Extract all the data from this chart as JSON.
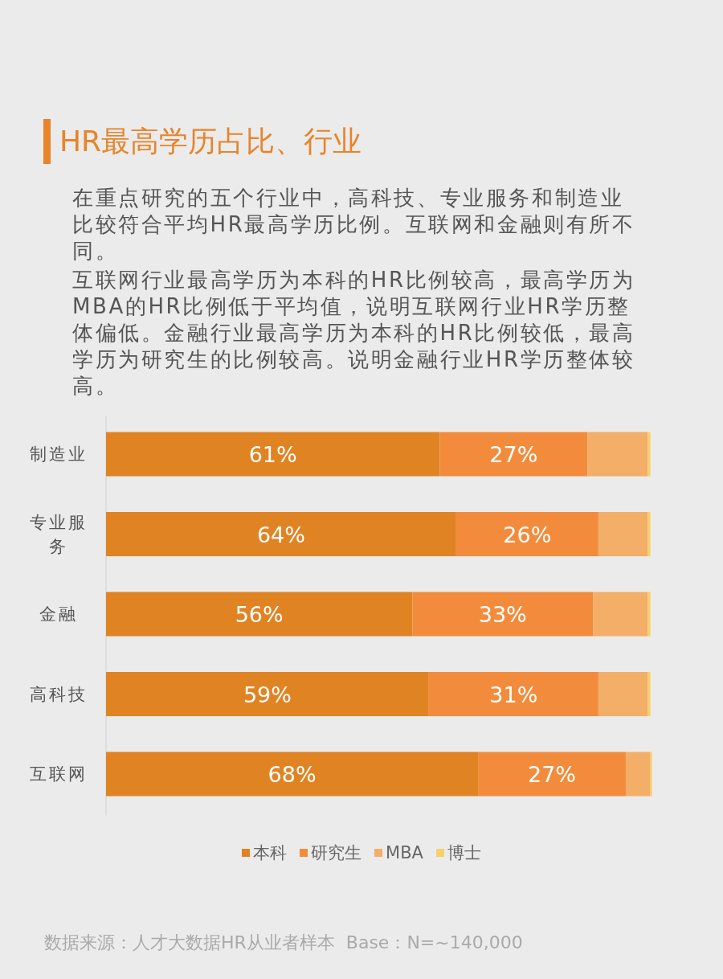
{
  "chart_data": {
    "type": "bar",
    "orientation": "horizontal",
    "stacked": true,
    "title": "HR最高学历占比、行业",
    "subtitle": "在重点研究的五个行业中，高科技、专业服务和制造业比较符合平均HR最高学历比例。互联网和金融则有所不同。",
    "annotations": [
      "互联网行业最高学历为本科的HR比例较高，最高学历为MBA的HR比例低于平均值，说明互联网行业HR学历整体偏低。金融行业最高学历为本科的HR比例较低，最高学历为研究生的比例较高。说明金融行业HR学历整体较高。",
      "数据来源：人才大数据HR从业者样本  Base：N=~140,000"
    ],
    "categories": [
      "制造业",
      "专业服务",
      "金融",
      "高科技",
      "互联网"
    ],
    "xlim": [
      0,
      100
    ],
    "series": [
      {
        "name": "本科",
        "color": "#e08423",
        "values": [
          61,
          64,
          56,
          59,
          68
        ],
        "value_labels": [
          "61%",
          "64%",
          "56%",
          "59%",
          "68%"
        ]
      },
      {
        "name": "研究生",
        "color": "#f28c3c",
        "values": [
          27,
          26,
          33,
          31,
          27
        ],
        "value_labels": [
          "27%",
          "26%",
          "33%",
          "31%",
          "27%"
        ]
      },
      {
        "name": "MBA",
        "color": "#f3ae68",
        "values": [
          11,
          9,
          10,
          9,
          4.5
        ]
      },
      {
        "name": "博士",
        "color": "#f8d06a",
        "values": [
          0.5,
          0.5,
          0.5,
          0.5,
          0.3
        ]
      }
    ],
    "legend": "bottom",
    "tick_labels": "y"
  }
}
